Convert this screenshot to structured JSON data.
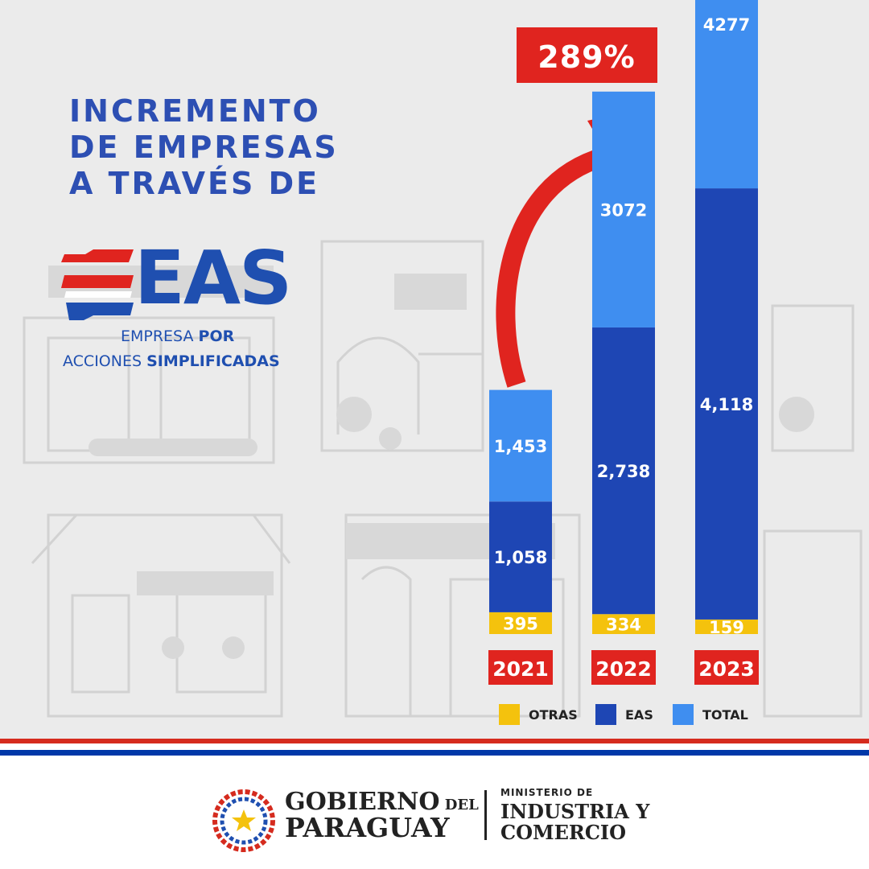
{
  "title_lines": [
    "INCREMENTO",
    "DE EMPRESAS",
    "A TRAVÉS DE"
  ],
  "logo": {
    "word": "EAS",
    "subtitle_line1_a": "EMPRESA ",
    "subtitle_line1_b": "POR",
    "subtitle_line2_a": "ACCIONES ",
    "subtitle_line2_b": "SIMPLIFICADAS"
  },
  "chart_data": {
    "type": "bar",
    "stacked": true,
    "categories": [
      "2021",
      "2022",
      "2023"
    ],
    "series": [
      {
        "name": "OTRAS",
        "values": [
          395,
          334,
          159
        ],
        "labels": [
          "395",
          "334",
          "159"
        ]
      },
      {
        "name": "EAS",
        "values": [
          1058,
          2738,
          4118
        ],
        "labels": [
          "1,058",
          "2,738",
          "4,118"
        ]
      },
      {
        "name": "TOTAL",
        "values": [
          1453,
          3072,
          4277
        ],
        "labels": [
          "1,453",
          "3072",
          "4277"
        ]
      }
    ],
    "annotation": "289%",
    "legend_position": "bottom",
    "grid": false
  },
  "colors": {
    "otras": "#f4c20d",
    "eas": "#1e46b4",
    "total": "#3f8ef0",
    "year_badge": "#e0241f",
    "arrow": "#e0241f",
    "title": "#2d4fb3",
    "flag_red": "#d52b1e",
    "flag_blue": "#0038a8"
  },
  "footer": {
    "gov_line1_a": "GOBIERNO",
    "gov_line1_b": " DEL",
    "gov_line2": "PARAGUAY",
    "ministry_line1": "MINISTERIO DE",
    "ministry_line2": "INDUSTRIA Y",
    "ministry_line3": "COMERCIO"
  }
}
